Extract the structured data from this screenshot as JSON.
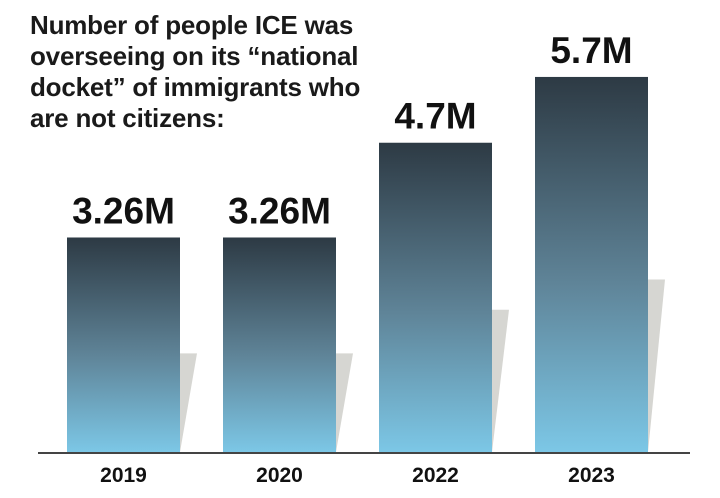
{
  "chart_data": {
    "type": "bar",
    "title_lines": [
      "Number of people ICE was",
      "overseeing on its “national",
      "docket” of immigrants who",
      "are not citizens:"
    ],
    "categories": [
      "2019",
      "2020",
      "2022",
      "2023"
    ],
    "values": [
      3.26,
      3.26,
      4.7,
      5.7
    ],
    "value_labels": [
      "3.26M",
      "3.26M",
      "4.7M",
      "5.7M"
    ],
    "ylim": [
      0,
      6.5
    ],
    "grid": false,
    "colors": {
      "bar_top": "#2d3a44",
      "bar_mid": "#5f8498",
      "bar_bottom": "#7cc7e6",
      "shadow": "#d6d6d2",
      "axis": "#444444"
    }
  }
}
